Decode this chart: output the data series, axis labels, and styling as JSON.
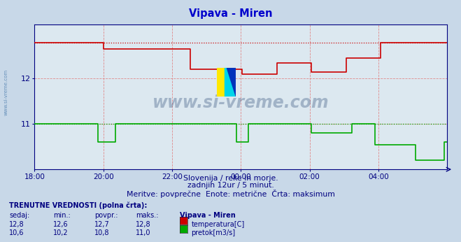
{
  "title": "Vipava - Miren",
  "title_color": "#0000cc",
  "bg_color": "#c8d8e8",
  "plot_bg_color": "#dce8f0",
  "grid_color": "#e08080",
  "axis_color": "#000080",
  "text_color": "#000080",
  "x_labels": [
    "18:00",
    "20:00",
    "22:00",
    "00:00",
    "02:00",
    "04:00"
  ],
  "x_ticks_norm": [
    0.0,
    0.1667,
    0.3333,
    0.5,
    0.6667,
    0.8333
  ],
  "subtitle1": "Slovenija / reke in morje.",
  "subtitle2": "zadnjih 12ur / 5 minut.",
  "subtitle3": "Meritve: povprečne  Enote: metrične  Črta: maksimum",
  "footer_bold": "TRENUTNE VREDNOSTI (polna črta):",
  "col_headers": [
    "sedaj:",
    "min.:",
    "povpr.:",
    "maks.:",
    "Vipava - Miren"
  ],
  "temp_row": [
    "12,8",
    "12,6",
    "12,7",
    "12,8",
    "temperatura[C]"
  ],
  "flow_row": [
    "10,6",
    "10,2",
    "10,8",
    "11,0",
    "pretok[m3/s]"
  ],
  "temp_color": "#cc0000",
  "flow_color": "#00aa00",
  "watermark_text": "www.si-vreme.com",
  "watermark_color": "#1a3a6a",
  "y_min": 10.0,
  "y_max": 13.2,
  "y_ticks": [
    11,
    12
  ],
  "temp_max_val": 12.8,
  "flow_max_val": 11.0
}
